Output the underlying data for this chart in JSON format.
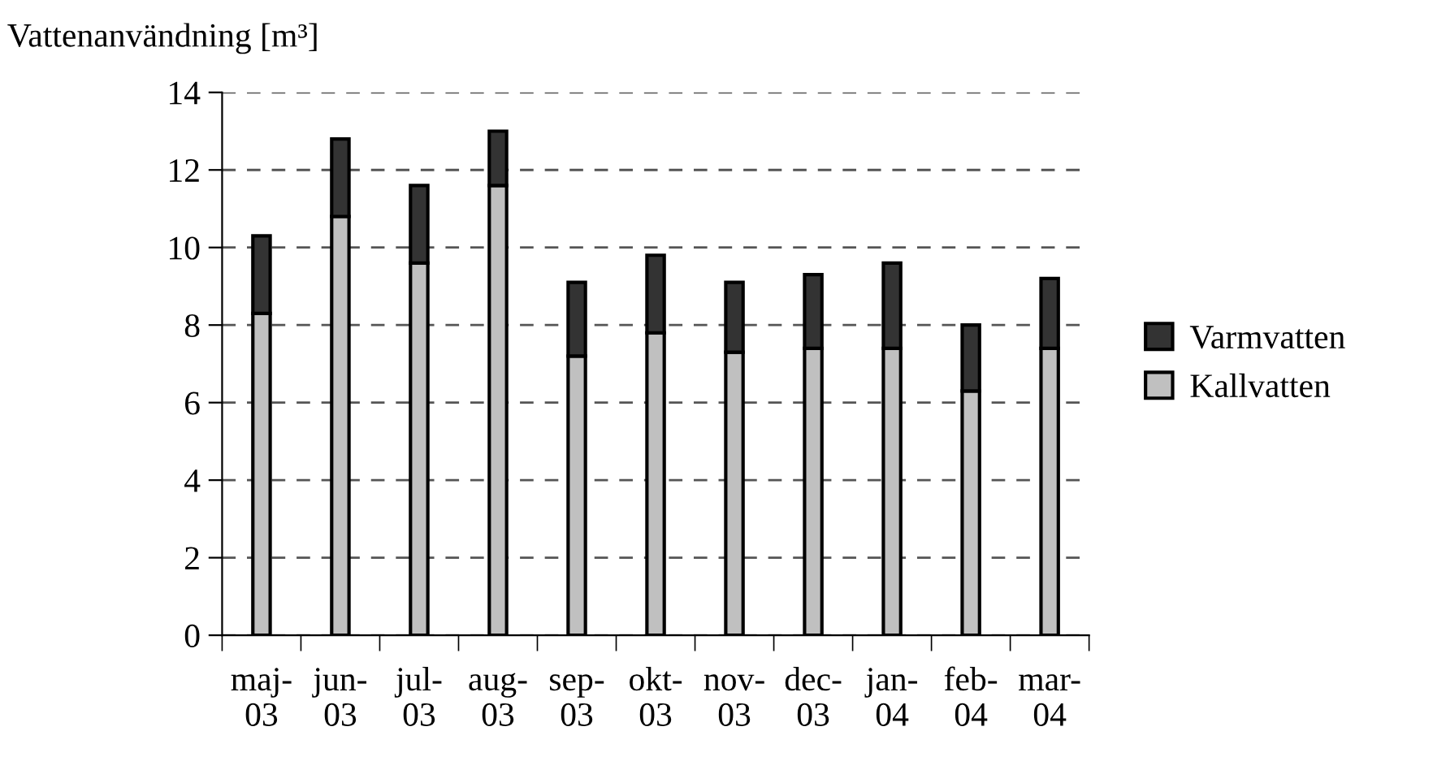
{
  "chart_data": {
    "type": "bar",
    "stacked": true,
    "ylabel": "Vattenanvändning [m³]",
    "categories": [
      "maj-\n03",
      "jun-\n03",
      "jul-\n03",
      "aug-\n03",
      "sep-\n03",
      "okt-\n03",
      "nov-\n03",
      "dec-\n03",
      "jan-\n04",
      "feb-\n04",
      "mar-\n04"
    ],
    "series": [
      {
        "name": "Kallvatten",
        "color": "#c0c0c0",
        "values": [
          8.3,
          10.8,
          9.6,
          11.6,
          7.2,
          7.8,
          7.3,
          7.4,
          7.4,
          6.3,
          7.4
        ]
      },
      {
        "name": "Varmvatten",
        "color": "#333333",
        "values": [
          2.0,
          2.0,
          2.0,
          1.4,
          1.9,
          2.0,
          1.8,
          1.9,
          2.2,
          1.7,
          1.8
        ]
      }
    ],
    "ylim": [
      0,
      14
    ],
    "yticks": [
      0,
      2,
      4,
      6,
      8,
      10,
      12,
      14
    ],
    "grid": "y",
    "legend": "right"
  }
}
